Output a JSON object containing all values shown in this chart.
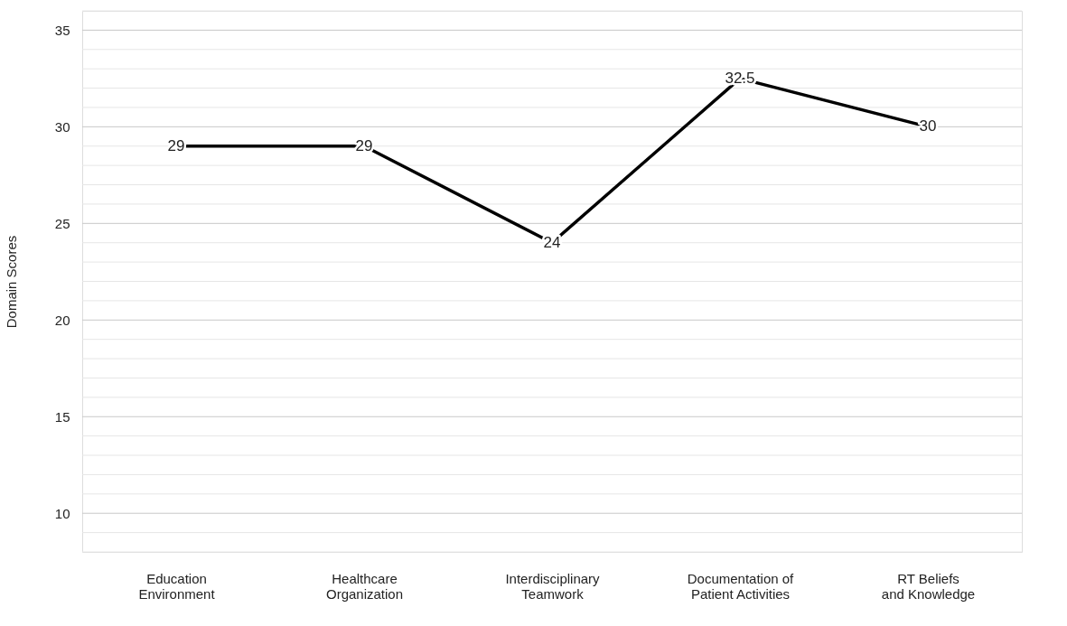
{
  "chart_data": {
    "type": "line",
    "ylabel": "Domain Scores",
    "categories": [
      "Education Environment",
      "Healthcare Organization",
      "Interdisciplinary Teamwork",
      "Documentation of Patient Activities",
      "RT Beliefs and Knowledge"
    ],
    "series": [
      {
        "color": "#000000",
        "values": [
          29,
          29,
          24,
          32.5,
          30
        ]
      }
    ],
    "ylim": [
      8,
      36
    ],
    "yticks": [
      {
        "value": 8,
        "label": null
      },
      {
        "value": 9,
        "label": null
      },
      10,
      {
        "value": 11,
        "label": null
      },
      {
        "value": 12,
        "label": null
      },
      {
        "value": 13,
        "label": null
      },
      {
        "value": 14,
        "label": null
      },
      15,
      {
        "value": 16,
        "label": null
      },
      {
        "value": 17,
        "label": null
      },
      {
        "value": 18,
        "label": null
      },
      {
        "value": 19,
        "label": null
      },
      20,
      {
        "value": 21,
        "label": null
      },
      {
        "value": 22,
        "label": null
      },
      {
        "value": 23,
        "label": null
      },
      {
        "value": 24,
        "label": null
      },
      25,
      {
        "value": 26,
        "label": null
      },
      {
        "value": 27,
        "label": null
      },
      {
        "value": 28,
        "label": null
      },
      {
        "value": 29,
        "label": null
      },
      30,
      {
        "value": 31,
        "label": null
      },
      {
        "value": 32,
        "label": null
      },
      {
        "value": 33,
        "label": null
      },
      {
        "value": 34,
        "label": null
      },
      35,
      {
        "value": 36,
        "label": null
      }
    ],
    "grid": true,
    "data_labels": true,
    "marker": "none",
    "line_style": "solid"
  }
}
